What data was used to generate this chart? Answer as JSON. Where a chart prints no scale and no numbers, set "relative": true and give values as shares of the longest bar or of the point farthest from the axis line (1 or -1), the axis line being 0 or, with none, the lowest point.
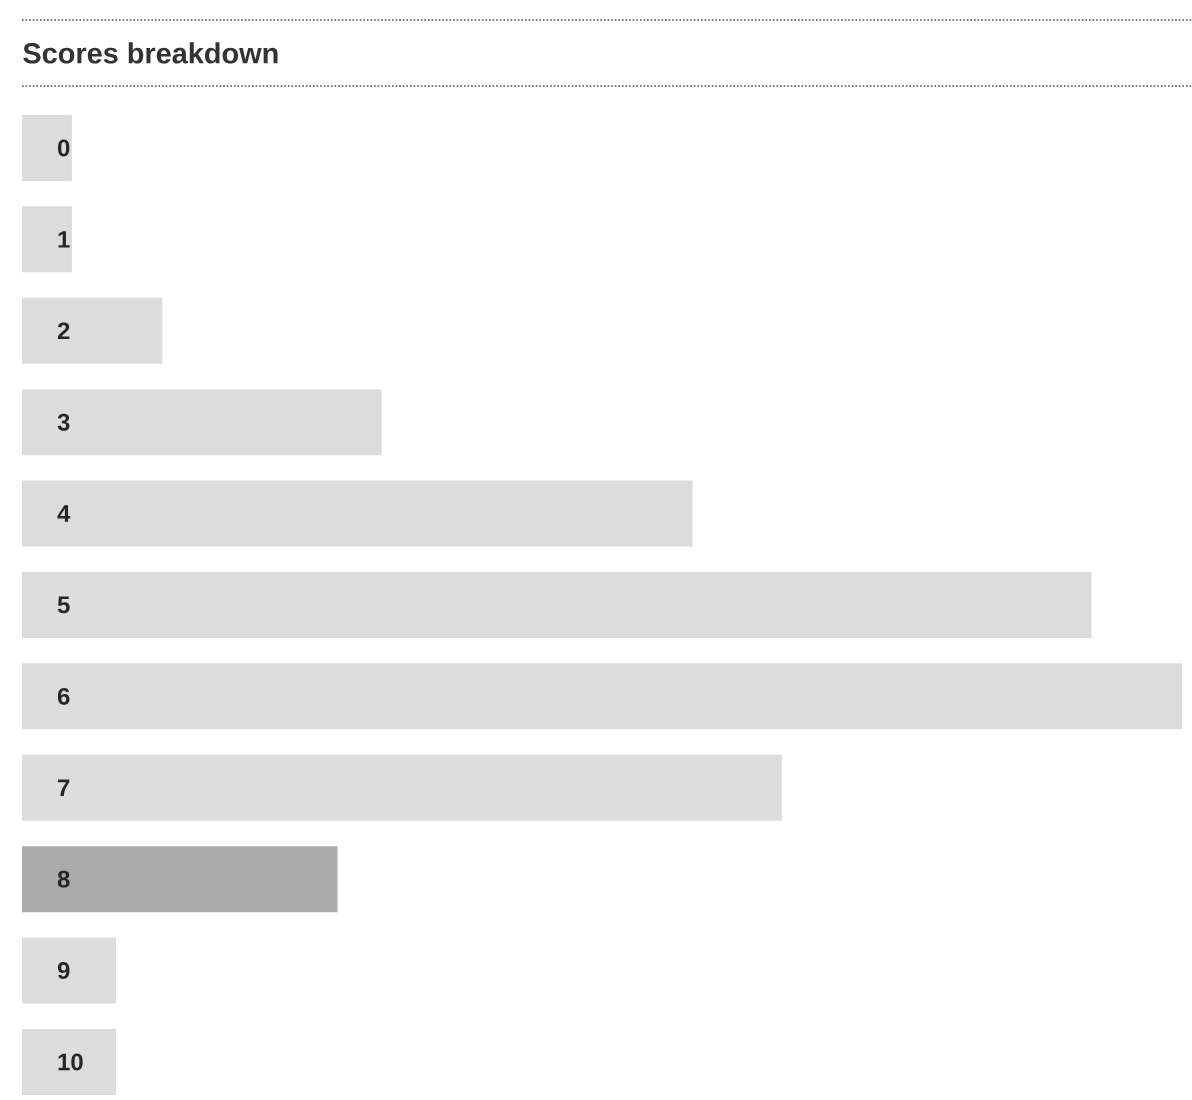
{
  "chart_data": {
    "type": "bar",
    "title": "Scores breakdown",
    "orientation": "horizontal",
    "relative": true,
    "categories": [
      "0",
      "1",
      "2",
      "3",
      "4",
      "5",
      "6",
      "7",
      "8",
      "9",
      "10"
    ],
    "values": [
      0.043,
      0.043,
      0.121,
      0.31,
      0.578,
      0.922,
      1,
      0.655,
      0.272,
      0.081,
      0.081
    ],
    "colors": [
      "#dcdcdc",
      "#dcdcdc",
      "#dcdcdc",
      "#dcdcdc",
      "#dcdcdc",
      "#dcdcdc",
      "#dcdcdc",
      "#dcdcdc",
      "#aaaaaa",
      "#dcdcdc",
      "#dcdcdc"
    ]
  }
}
